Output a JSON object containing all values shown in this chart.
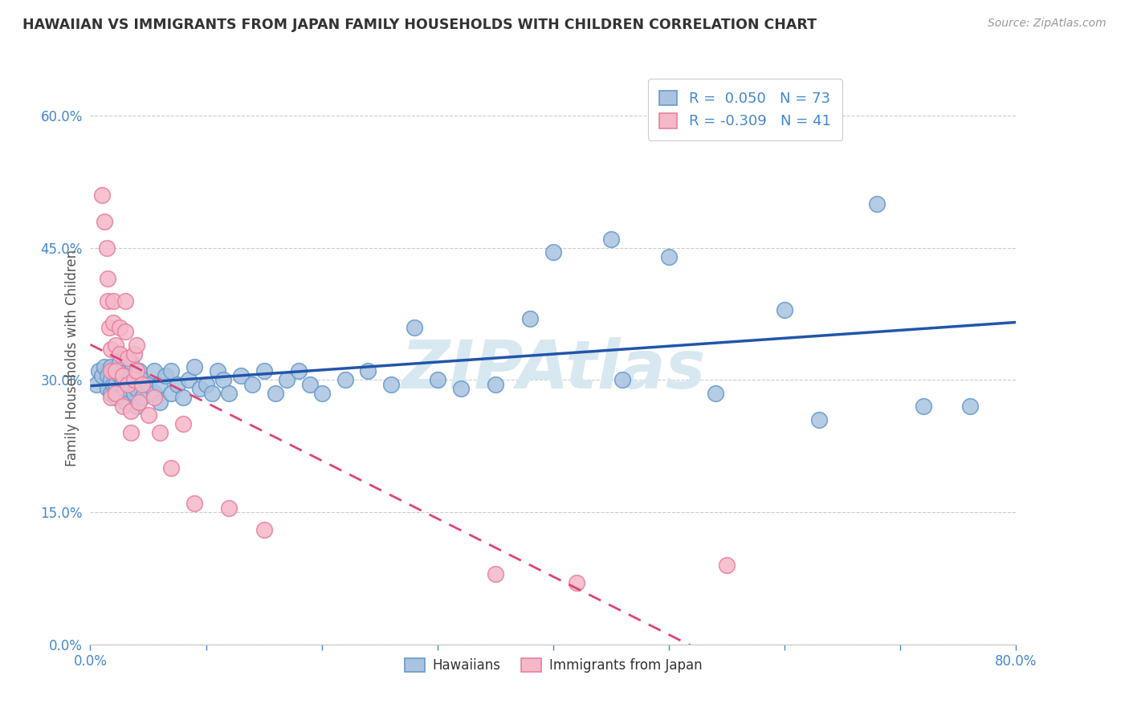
{
  "title": "HAWAIIAN VS IMMIGRANTS FROM JAPAN FAMILY HOUSEHOLDS WITH CHILDREN CORRELATION CHART",
  "source": "Source: ZipAtlas.com",
  "ylabel": "Family Households with Children",
  "xlim": [
    0.0,
    0.8
  ],
  "ylim": [
    0.0,
    0.65
  ],
  "yticks": [
    0.0,
    0.15,
    0.3,
    0.45,
    0.6
  ],
  "ytick_labels": [
    "0.0%",
    "15.0%",
    "30.0%",
    "45.0%",
    "60.0%"
  ],
  "xticks": [
    0.0,
    0.1,
    0.2,
    0.3,
    0.4,
    0.5,
    0.6,
    0.7,
    0.8
  ],
  "xtick_labels": [
    "0.0%",
    "",
    "",
    "",
    "",
    "",
    "",
    "",
    "80.0%"
  ],
  "hawaiians_R": 0.05,
  "hawaiians_N": 73,
  "japan_R": -0.309,
  "japan_N": 41,
  "hawaii_color": "#aac4e0",
  "hawaii_edge_color": "#6699cc",
  "japan_color": "#f5b8c8",
  "japan_edge_color": "#e87fa0",
  "hawaii_line_color": "#2255aa",
  "japan_line_color": "#dd4477",
  "background_color": "#ffffff",
  "watermark_color": "#d8e8f0",
  "grid_color": "#cccccc",
  "title_color": "#333333",
  "axis_label_color": "#555555",
  "tick_label_color": "#4488cc",
  "legend_text_color": "#333333",
  "legend_value_color": "#4488cc",
  "hawaii_scatter": [
    [
      0.005,
      0.295
    ],
    [
      0.007,
      0.31
    ],
    [
      0.01,
      0.305
    ],
    [
      0.012,
      0.315
    ],
    [
      0.015,
      0.29
    ],
    [
      0.015,
      0.305
    ],
    [
      0.018,
      0.285
    ],
    [
      0.018,
      0.3
    ],
    [
      0.018,
      0.315
    ],
    [
      0.02,
      0.295
    ],
    [
      0.02,
      0.31
    ],
    [
      0.022,
      0.28
    ],
    [
      0.022,
      0.295
    ],
    [
      0.025,
      0.305
    ],
    [
      0.025,
      0.32
    ],
    [
      0.028,
      0.285
    ],
    [
      0.028,
      0.3
    ],
    [
      0.03,
      0.275
    ],
    [
      0.03,
      0.29
    ],
    [
      0.032,
      0.31
    ],
    [
      0.035,
      0.295
    ],
    [
      0.035,
      0.32
    ],
    [
      0.038,
      0.285
    ],
    [
      0.038,
      0.305
    ],
    [
      0.04,
      0.27
    ],
    [
      0.04,
      0.29
    ],
    [
      0.042,
      0.31
    ],
    [
      0.045,
      0.28
    ],
    [
      0.045,
      0.3
    ],
    [
      0.05,
      0.295
    ],
    [
      0.055,
      0.285
    ],
    [
      0.055,
      0.31
    ],
    [
      0.06,
      0.275
    ],
    [
      0.06,
      0.295
    ],
    [
      0.065,
      0.305
    ],
    [
      0.07,
      0.285
    ],
    [
      0.07,
      0.31
    ],
    [
      0.075,
      0.295
    ],
    [
      0.08,
      0.28
    ],
    [
      0.085,
      0.3
    ],
    [
      0.09,
      0.315
    ],
    [
      0.095,
      0.29
    ],
    [
      0.1,
      0.295
    ],
    [
      0.105,
      0.285
    ],
    [
      0.11,
      0.31
    ],
    [
      0.115,
      0.3
    ],
    [
      0.12,
      0.285
    ],
    [
      0.13,
      0.305
    ],
    [
      0.14,
      0.295
    ],
    [
      0.15,
      0.31
    ],
    [
      0.16,
      0.285
    ],
    [
      0.17,
      0.3
    ],
    [
      0.18,
      0.31
    ],
    [
      0.19,
      0.295
    ],
    [
      0.2,
      0.285
    ],
    [
      0.22,
      0.3
    ],
    [
      0.24,
      0.31
    ],
    [
      0.26,
      0.295
    ],
    [
      0.28,
      0.36
    ],
    [
      0.3,
      0.3
    ],
    [
      0.32,
      0.29
    ],
    [
      0.35,
      0.295
    ],
    [
      0.38,
      0.37
    ],
    [
      0.4,
      0.445
    ],
    [
      0.45,
      0.46
    ],
    [
      0.46,
      0.3
    ],
    [
      0.5,
      0.44
    ],
    [
      0.54,
      0.285
    ],
    [
      0.6,
      0.38
    ],
    [
      0.63,
      0.255
    ],
    [
      0.68,
      0.5
    ],
    [
      0.72,
      0.27
    ],
    [
      0.76,
      0.27
    ]
  ],
  "japan_scatter": [
    [
      0.01,
      0.51
    ],
    [
      0.012,
      0.48
    ],
    [
      0.014,
      0.45
    ],
    [
      0.015,
      0.415
    ],
    [
      0.015,
      0.39
    ],
    [
      0.016,
      0.36
    ],
    [
      0.018,
      0.335
    ],
    [
      0.018,
      0.31
    ],
    [
      0.018,
      0.28
    ],
    [
      0.02,
      0.39
    ],
    [
      0.02,
      0.365
    ],
    [
      0.022,
      0.34
    ],
    [
      0.022,
      0.31
    ],
    [
      0.022,
      0.285
    ],
    [
      0.025,
      0.36
    ],
    [
      0.025,
      0.33
    ],
    [
      0.028,
      0.305
    ],
    [
      0.028,
      0.27
    ],
    [
      0.03,
      0.39
    ],
    [
      0.03,
      0.355
    ],
    [
      0.032,
      0.325
    ],
    [
      0.032,
      0.295
    ],
    [
      0.035,
      0.265
    ],
    [
      0.035,
      0.24
    ],
    [
      0.038,
      0.33
    ],
    [
      0.038,
      0.3
    ],
    [
      0.04,
      0.34
    ],
    [
      0.04,
      0.31
    ],
    [
      0.042,
      0.275
    ],
    [
      0.045,
      0.295
    ],
    [
      0.05,
      0.26
    ],
    [
      0.055,
      0.28
    ],
    [
      0.06,
      0.24
    ],
    [
      0.07,
      0.2
    ],
    [
      0.08,
      0.25
    ],
    [
      0.09,
      0.16
    ],
    [
      0.12,
      0.155
    ],
    [
      0.15,
      0.13
    ],
    [
      0.35,
      0.08
    ],
    [
      0.42,
      0.07
    ],
    [
      0.55,
      0.09
    ]
  ]
}
